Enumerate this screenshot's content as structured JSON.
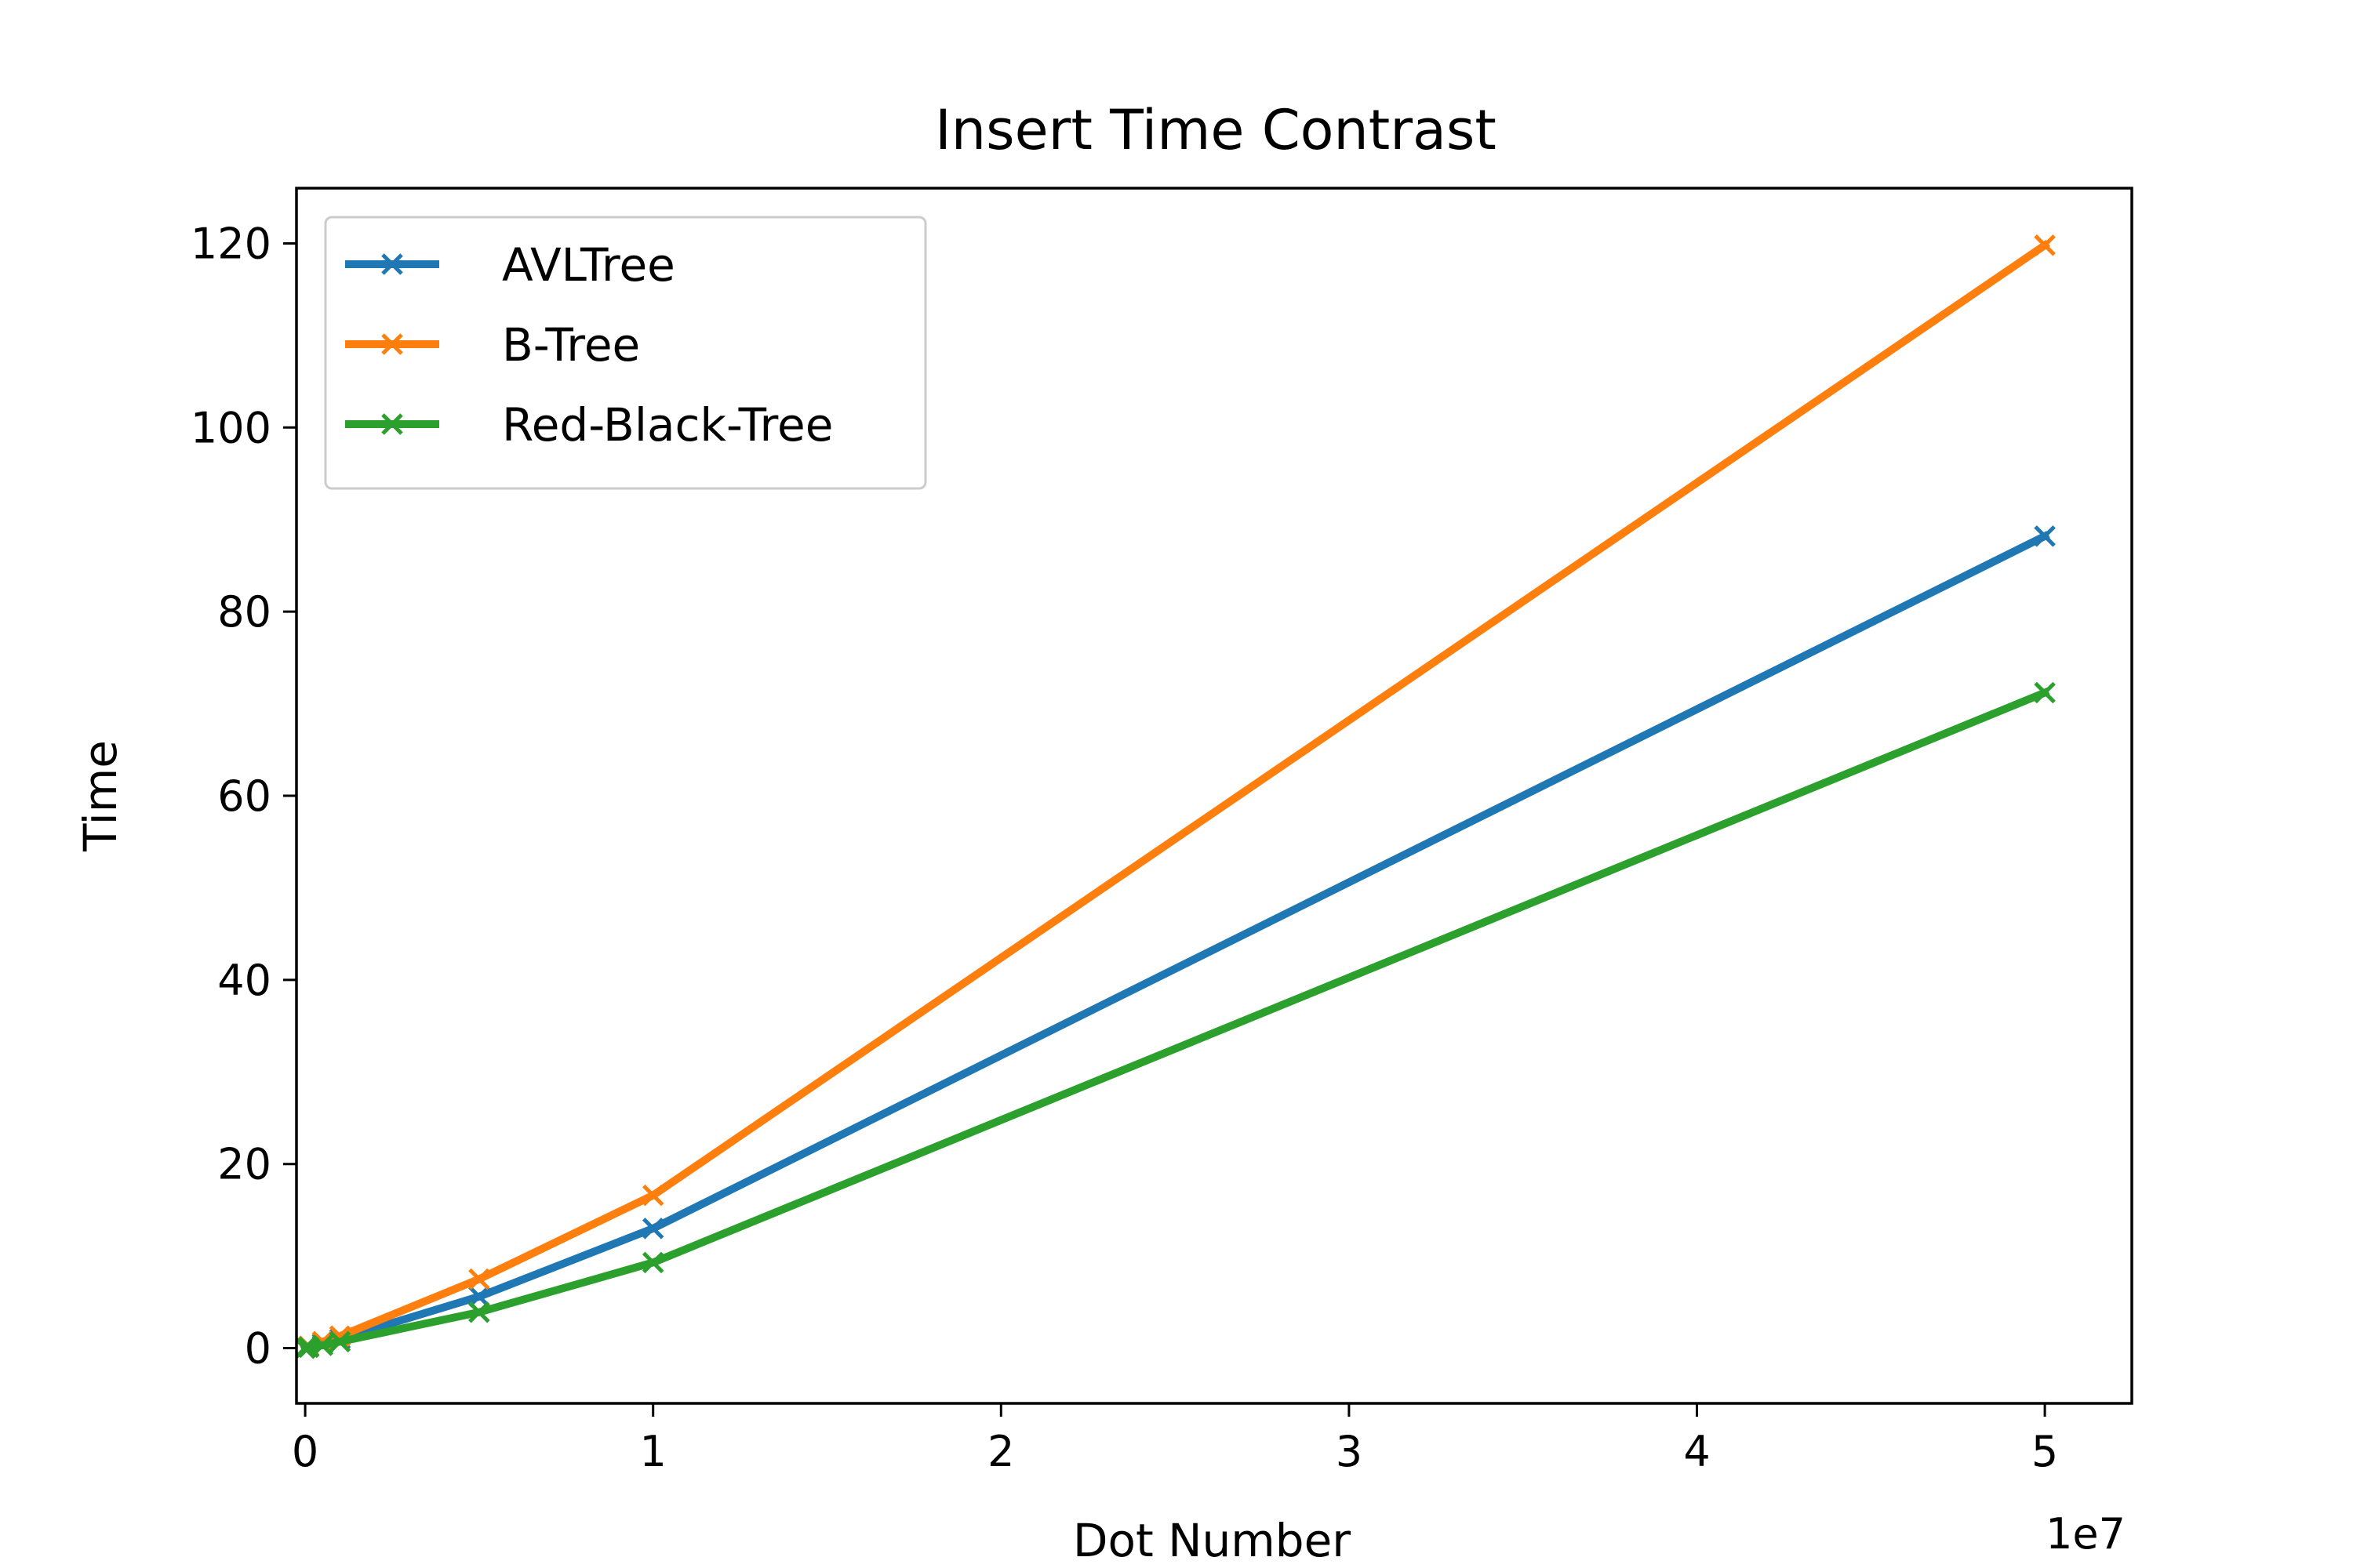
{
  "chart_data": {
    "type": "line",
    "title": "Insert Time Contrast",
    "xlabel": "Dot Number",
    "ylabel": "Time",
    "x_offset_label": "1e7",
    "x_scale": 10000000,
    "xlim": [
      -250000,
      52500000
    ],
    "ylim": [
      -6,
      126
    ],
    "xticks": [
      0,
      10000000,
      20000000,
      30000000,
      40000000,
      50000000
    ],
    "xtick_labels": [
      "0",
      "1",
      "2",
      "3",
      "4",
      "5"
    ],
    "yticks": [
      0,
      20,
      40,
      60,
      80,
      100,
      120
    ],
    "ytick_labels": [
      "0",
      "20",
      "40",
      "60",
      "80",
      "100",
      "120"
    ],
    "grid": false,
    "legend_position": "top-left",
    "marker": "x",
    "x": [
      0,
      100000,
      500000,
      1000000,
      5000000,
      10000000,
      50000000
    ],
    "series": [
      {
        "name": "AVLTree",
        "color": "#1f77b4",
        "values": [
          0.0,
          0.1,
          0.5,
          1.0,
          5.6,
          13.0,
          88.2
        ]
      },
      {
        "name": "B-Tree",
        "color": "#ff7f0e",
        "values": [
          0.0,
          0.2,
          0.7,
          1.3,
          7.5,
          16.6,
          119.8
        ]
      },
      {
        "name": "Red-Black-Tree",
        "color": "#2ca02c",
        "values": [
          0.0,
          0.1,
          0.3,
          0.7,
          3.9,
          9.3,
          71.2
        ]
      }
    ]
  }
}
